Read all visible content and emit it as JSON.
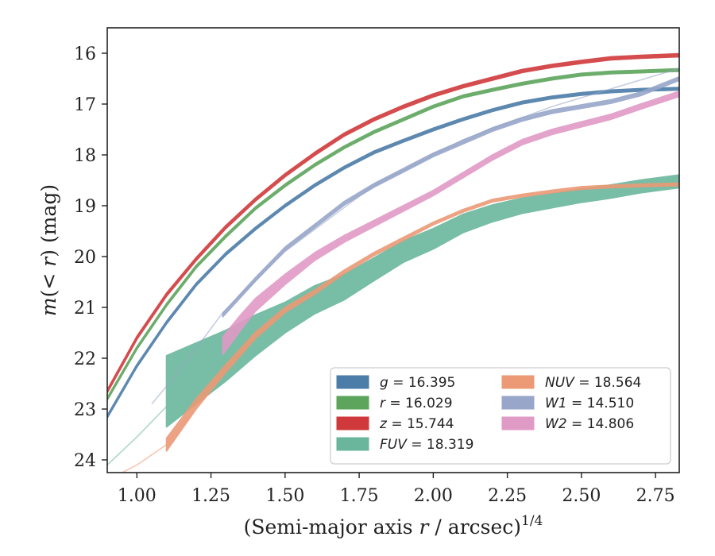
{
  "chart_data": {
    "type": "line",
    "xlabel": "(Semi-major axis r / arcsec)",
    "xlabel_italic": "r",
    "xlabel_exponent": "1/4",
    "ylabel": "m(< r) (mag)",
    "xlim": [
      0.9,
      2.83
    ],
    "ylim": [
      24.25,
      15.5
    ],
    "y_inverted": true,
    "grid": false,
    "legend_position": "bottom-right",
    "x_ticks": [
      "1.00",
      "1.25",
      "1.50",
      "1.75",
      "2.00",
      "2.25",
      "2.50",
      "2.75"
    ],
    "y_ticks": [
      "16",
      "17",
      "18",
      "19",
      "20",
      "21",
      "22",
      "23",
      "24"
    ],
    "series": [
      {
        "name": "g",
        "legend": "g = 16.395",
        "color": "#4c7ca8",
        "x": [
          0.9,
          1.0,
          1.1,
          1.2,
          1.3,
          1.4,
          1.5,
          1.6,
          1.7,
          1.8,
          1.9,
          2.0,
          2.1,
          2.2,
          2.3,
          2.4,
          2.5,
          2.6,
          2.7,
          2.83
        ],
        "y": [
          23.15,
          22.15,
          21.3,
          20.55,
          19.95,
          19.45,
          19.0,
          18.6,
          18.25,
          17.95,
          17.72,
          17.5,
          17.3,
          17.12,
          16.97,
          16.87,
          16.8,
          16.75,
          16.72,
          16.7
        ],
        "band": 0.05,
        "faint": null
      },
      {
        "name": "r",
        "legend": "r = 16.029",
        "color": "#5da55d",
        "x": [
          0.9,
          1.0,
          1.1,
          1.2,
          1.3,
          1.4,
          1.5,
          1.6,
          1.7,
          1.8,
          1.9,
          2.0,
          2.1,
          2.2,
          2.3,
          2.4,
          2.5,
          2.6,
          2.7,
          2.83
        ],
        "y": [
          22.8,
          21.8,
          20.95,
          20.2,
          19.6,
          19.05,
          18.6,
          18.2,
          17.85,
          17.55,
          17.3,
          17.05,
          16.85,
          16.72,
          16.6,
          16.5,
          16.42,
          16.38,
          16.36,
          16.33
        ],
        "band": 0.05,
        "faint": null
      },
      {
        "name": "z",
        "legend": "z = 15.744",
        "color": "#d0393b",
        "x": [
          0.9,
          1.0,
          1.1,
          1.2,
          1.3,
          1.4,
          1.5,
          1.6,
          1.7,
          1.8,
          1.9,
          2.0,
          2.1,
          2.2,
          2.3,
          2.4,
          2.5,
          2.6,
          2.7,
          2.83
        ],
        "y": [
          22.65,
          21.6,
          20.75,
          20.05,
          19.42,
          18.88,
          18.4,
          17.98,
          17.6,
          17.3,
          17.05,
          16.83,
          16.65,
          16.5,
          16.35,
          16.25,
          16.17,
          16.1,
          16.07,
          16.04
        ],
        "band": 0.06,
        "faint": null
      },
      {
        "name": "FUV",
        "legend": "FUV = 18.319",
        "color": "#6ab69d",
        "x": [
          1.1,
          1.2,
          1.3,
          1.4,
          1.5,
          1.6,
          1.7,
          1.8,
          1.9,
          2.0,
          2.1,
          2.2,
          2.3,
          2.4,
          2.5,
          2.6,
          2.7,
          2.83
        ],
        "y": [
          22.65,
          22.3,
          21.95,
          21.55,
          21.2,
          20.85,
          20.6,
          20.25,
          19.9,
          19.65,
          19.35,
          19.15,
          19.0,
          18.9,
          18.8,
          18.72,
          18.62,
          18.52
        ],
        "band": [
          1.4,
          1.2,
          1.0,
          0.8,
          0.6,
          0.55,
          0.5,
          0.45,
          0.42,
          0.4,
          0.36,
          0.33,
          0.3,
          0.28,
          0.27,
          0.26,
          0.25,
          0.25
        ],
        "faint": {
          "x": [
            0.9,
            1.0,
            1.1
          ],
          "y": [
            24.1,
            23.55,
            22.95
          ]
        }
      },
      {
        "name": "NUV",
        "legend": "NUV = 18.564",
        "color": "#ec9a76",
        "x": [
          1.1,
          1.2,
          1.3,
          1.4,
          1.5,
          1.6,
          1.7,
          1.8,
          1.9,
          2.0,
          2.1,
          2.2,
          2.3,
          2.4,
          2.5,
          2.6,
          2.7,
          2.83
        ],
        "y": [
          23.7,
          22.9,
          22.2,
          21.55,
          21.05,
          20.7,
          20.3,
          19.95,
          19.65,
          19.35,
          19.1,
          18.9,
          18.8,
          18.72,
          18.65,
          18.62,
          18.6,
          18.58
        ],
        "band": [
          0.25,
          0.2,
          0.15,
          0.12,
          0.1,
          0.08,
          0.07,
          0.06,
          0.06,
          0.05,
          0.05,
          0.05,
          0.05,
          0.05,
          0.05,
          0.05,
          0.05,
          0.05
        ],
        "faint": {
          "x": [
            0.95,
            1.0,
            1.1
          ],
          "y": [
            24.25,
            24.1,
            23.7
          ]
        }
      },
      {
        "name": "W1",
        "legend": "W1 = 14.510",
        "color": "#97a6c9",
        "x": [
          1.29,
          1.4,
          1.5,
          1.6,
          1.7,
          1.8,
          1.9,
          2.0,
          2.1,
          2.2,
          2.3,
          2.4,
          2.5,
          2.6,
          2.7,
          2.83
        ],
        "y": [
          21.15,
          20.45,
          19.85,
          19.4,
          18.95,
          18.6,
          18.3,
          18.0,
          17.75,
          17.5,
          17.3,
          17.15,
          17.05,
          16.95,
          16.8,
          16.5
        ],
        "band": 0.07,
        "faint": {
          "x": [
            1.05,
            1.15,
            1.29,
            1.5,
            1.8,
            2.1,
            2.4,
            2.6,
            2.83
          ],
          "y": [
            22.9,
            22.2,
            21.1,
            19.9,
            18.6,
            17.7,
            17.05,
            16.7,
            16.3
          ]
        }
      },
      {
        "name": "W2",
        "legend": "W2 = 14.806",
        "color": "#e09ac6",
        "x": [
          1.29,
          1.35,
          1.4,
          1.5,
          1.6,
          1.7,
          1.8,
          1.9,
          2.0,
          2.1,
          2.2,
          2.3,
          2.4,
          2.5,
          2.6,
          2.7,
          2.83
        ],
        "y": [
          21.75,
          21.3,
          20.95,
          20.45,
          20.0,
          19.65,
          19.35,
          19.05,
          18.75,
          18.4,
          18.05,
          17.75,
          17.55,
          17.4,
          17.25,
          17.05,
          16.8
        ],
        "band": [
          0.35,
          0.3,
          0.25,
          0.2,
          0.15,
          0.13,
          0.12,
          0.11,
          0.1,
          0.1,
          0.1,
          0.1,
          0.1,
          0.1,
          0.1,
          0.1,
          0.1
        ],
        "faint": null
      }
    ],
    "legend_columns": [
      [
        "g",
        "r",
        "z",
        "FUV"
      ],
      [
        "NUV",
        "W1",
        "W2"
      ]
    ]
  }
}
